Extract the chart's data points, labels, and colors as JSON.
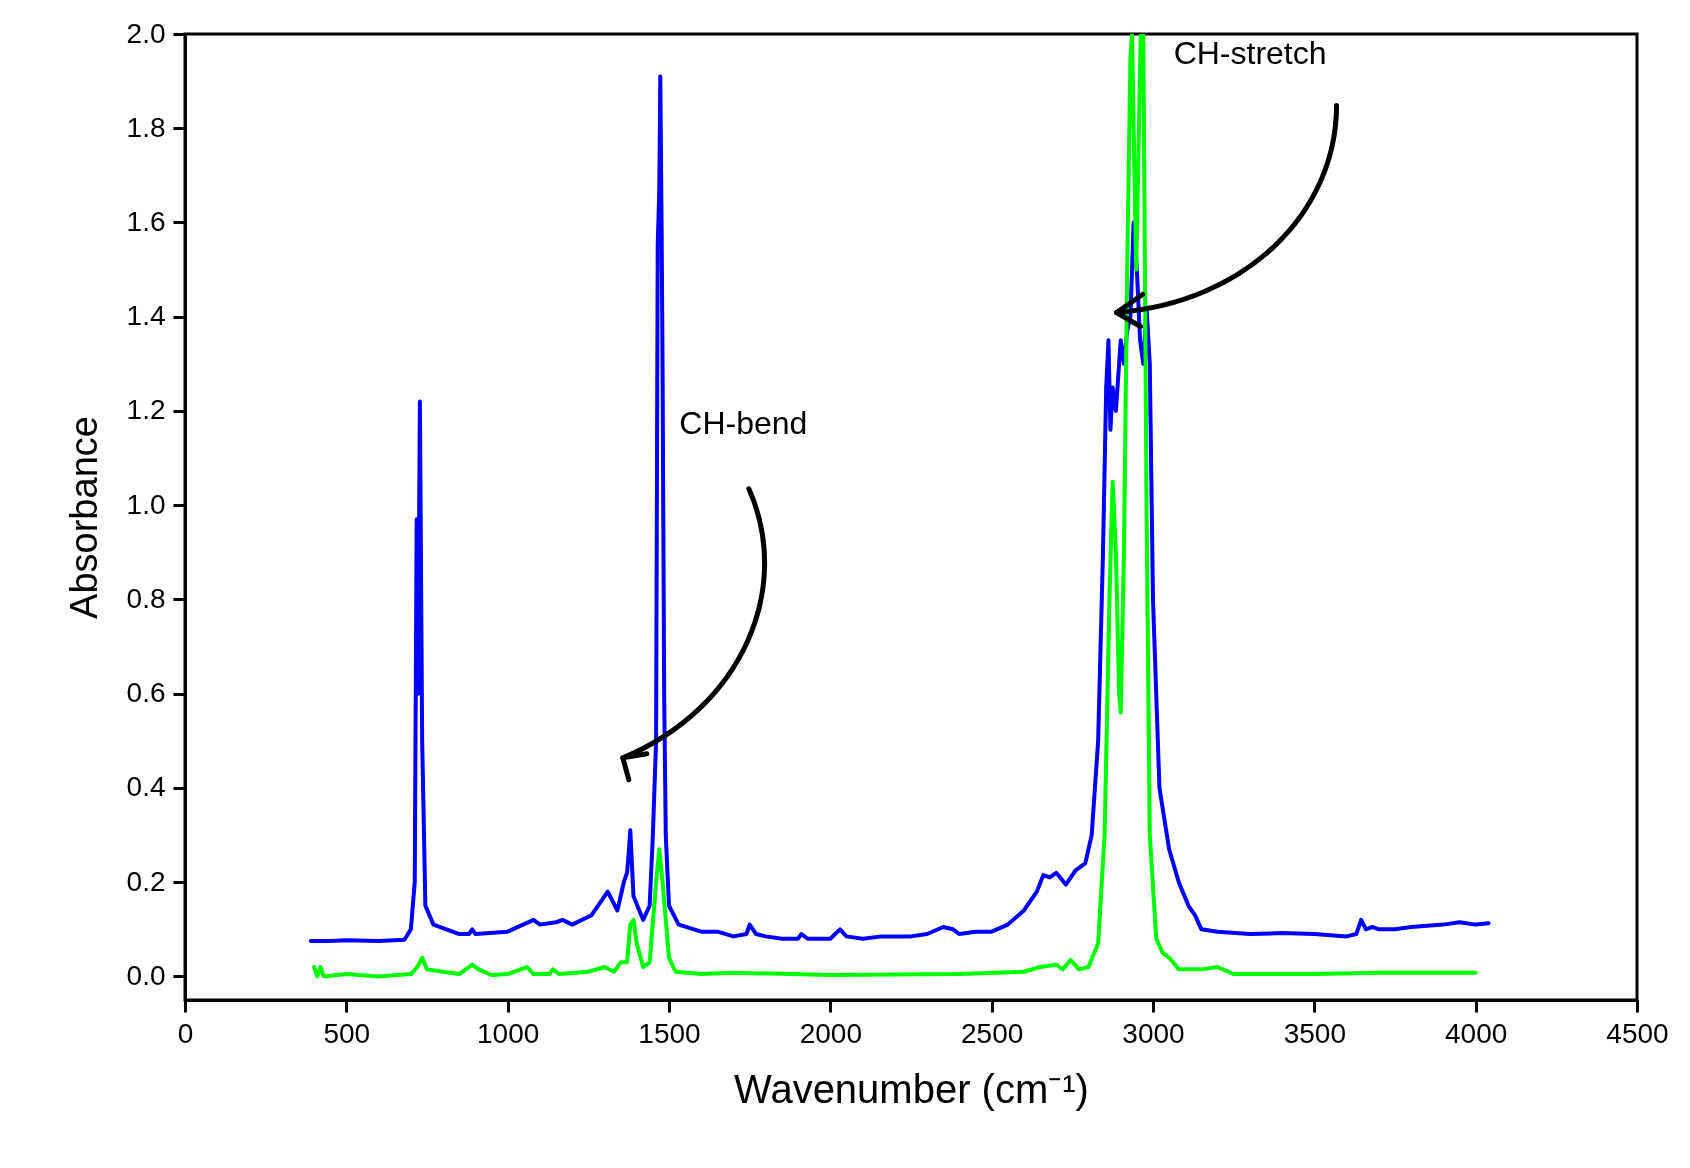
{
  "chart_data": {
    "type": "line",
    "xlabel": "Wavenumber (cm⁻¹)",
    "ylabel": "Absorbance",
    "xlim": [
      0,
      4500
    ],
    "xticks": [
      0,
      500,
      1000,
      1500,
      2000,
      2500,
      3000,
      3500,
      4000,
      4500
    ],
    "ylim": [
      -0.05,
      2.0
    ],
    "yticks": [
      {
        "value": 0,
        "label": "0.0"
      },
      0.2,
      0.4,
      0.6,
      0.8,
      {
        "value": 1,
        "label": "1.0"
      },
      1.2,
      1.4,
      1.6,
      1.8,
      {
        "value": 2,
        "label": "2.0"
      }
    ],
    "grid": false,
    "line_style": "solid",
    "annotations": [
      "CH-bend",
      "CH-stretch"
    ],
    "series": [
      {
        "color": "#0000ff",
        "x": [
          390,
          450,
          500,
          600,
          680,
          700,
          712,
          718,
          722,
          728,
          735,
          745,
          770,
          850,
          880,
          890,
          900,
          1000,
          1080,
          1100,
          1150,
          1170,
          1200,
          1260,
          1300,
          1310,
          1340,
          1360,
          1370,
          1375,
          1380,
          1390,
          1420,
          1440,
          1450,
          1460,
          1465,
          1470,
          1473,
          1477,
          1480,
          1485,
          1490,
          1500,
          1530,
          1600,
          1650,
          1700,
          1740,
          1750,
          1770,
          1800,
          1850,
          1900,
          1910,
          1930,
          2000,
          2030,
          2050,
          2100,
          2160,
          2250,
          2300,
          2350,
          2380,
          2400,
          2450,
          2500,
          2550,
          2600,
          2640,
          2660,
          2680,
          2700,
          2730,
          2760,
          2790,
          2810,
          2830,
          2845,
          2855,
          2862,
          2868,
          2875,
          2885,
          2900,
          2910,
          2920,
          2930,
          2940,
          2950,
          2960,
          2970,
          2980,
          2990,
          3000,
          3020,
          3050,
          3080,
          3110,
          3130,
          3150,
          3200,
          3300,
          3400,
          3500,
          3600,
          3630,
          3645,
          3660,
          3680,
          3700,
          3750,
          3800,
          3900,
          3950,
          4000,
          4040
        ],
        "values": [
          0.075,
          0.075,
          0.077,
          0.075,
          0.078,
          0.1,
          0.2,
          0.97,
          0.6,
          1.22,
          0.5,
          0.15,
          0.11,
          0.09,
          0.09,
          0.1,
          0.09,
          0.095,
          0.12,
          0.11,
          0.115,
          0.12,
          0.11,
          0.13,
          0.17,
          0.18,
          0.14,
          0.2,
          0.22,
          0.26,
          0.31,
          0.17,
          0.12,
          0.15,
          0.3,
          0.5,
          1.55,
          1.67,
          1.91,
          1.6,
          1.3,
          0.6,
          0.3,
          0.15,
          0.11,
          0.095,
          0.095,
          0.085,
          0.09,
          0.11,
          0.09,
          0.085,
          0.08,
          0.08,
          0.09,
          0.08,
          0.08,
          0.1,
          0.085,
          0.08,
          0.085,
          0.085,
          0.09,
          0.105,
          0.1,
          0.09,
          0.095,
          0.095,
          0.11,
          0.14,
          0.18,
          0.215,
          0.21,
          0.22,
          0.195,
          0.225,
          0.24,
          0.3,
          0.5,
          0.9,
          1.25,
          1.35,
          1.16,
          1.25,
          1.2,
          1.35,
          1.3,
          1.37,
          1.4,
          1.6,
          1.5,
          1.35,
          1.3,
          1.42,
          1.3,
          0.8,
          0.4,
          0.27,
          0.2,
          0.15,
          0.13,
          0.1,
          0.095,
          0.09,
          0.092,
          0.09,
          0.085,
          0.09,
          0.12,
          0.1,
          0.105,
          0.1,
          0.1,
          0.105,
          0.11,
          0.115,
          0.11,
          0.113
        ]
      },
      {
        "color": "#00ff00",
        "x": [
          400,
          410,
          420,
          430,
          500,
          600,
          700,
          720,
          735,
          750,
          800,
          850,
          890,
          910,
          950,
          1000,
          1060,
          1080,
          1130,
          1140,
          1160,
          1250,
          1300,
          1330,
          1350,
          1370,
          1380,
          1390,
          1400,
          1420,
          1440,
          1460,
          1470,
          1480,
          1500,
          1520,
          1600,
          1700,
          2000,
          2400,
          2600,
          2650,
          2700,
          2720,
          2745,
          2770,
          2800,
          2830,
          2850,
          2865,
          2875,
          2885,
          2895,
          2900,
          2910,
          2920,
          2930,
          2935,
          2948,
          2962,
          2970,
          2980,
          2990,
          3010,
          3030,
          3050,
          3080,
          3150,
          3200,
          3250,
          3500,
          3700,
          4000
        ],
        "values": [
          0.02,
          0.0,
          0.02,
          0.0,
          0.005,
          0.0,
          0.005,
          0.02,
          0.04,
          0.015,
          0.01,
          0.005,
          0.025,
          0.015,
          0.003,
          0.005,
          0.02,
          0.005,
          0.005,
          0.015,
          0.005,
          0.01,
          0.02,
          0.01,
          0.03,
          0.03,
          0.11,
          0.12,
          0.07,
          0.02,
          0.03,
          0.2,
          0.27,
          0.2,
          0.04,
          0.01,
          0.005,
          0.008,
          0.003,
          0.005,
          0.01,
          0.02,
          0.025,
          0.015,
          0.035,
          0.015,
          0.02,
          0.07,
          0.3,
          0.8,
          1.05,
          0.9,
          0.6,
          0.56,
          0.9,
          1.5,
          1.95,
          2.0,
          1.5,
          2.0,
          2.0,
          1.0,
          0.3,
          0.08,
          0.05,
          0.04,
          0.015,
          0.015,
          0.02,
          0.005,
          0.005,
          0.008,
          0.008
        ]
      }
    ]
  }
}
